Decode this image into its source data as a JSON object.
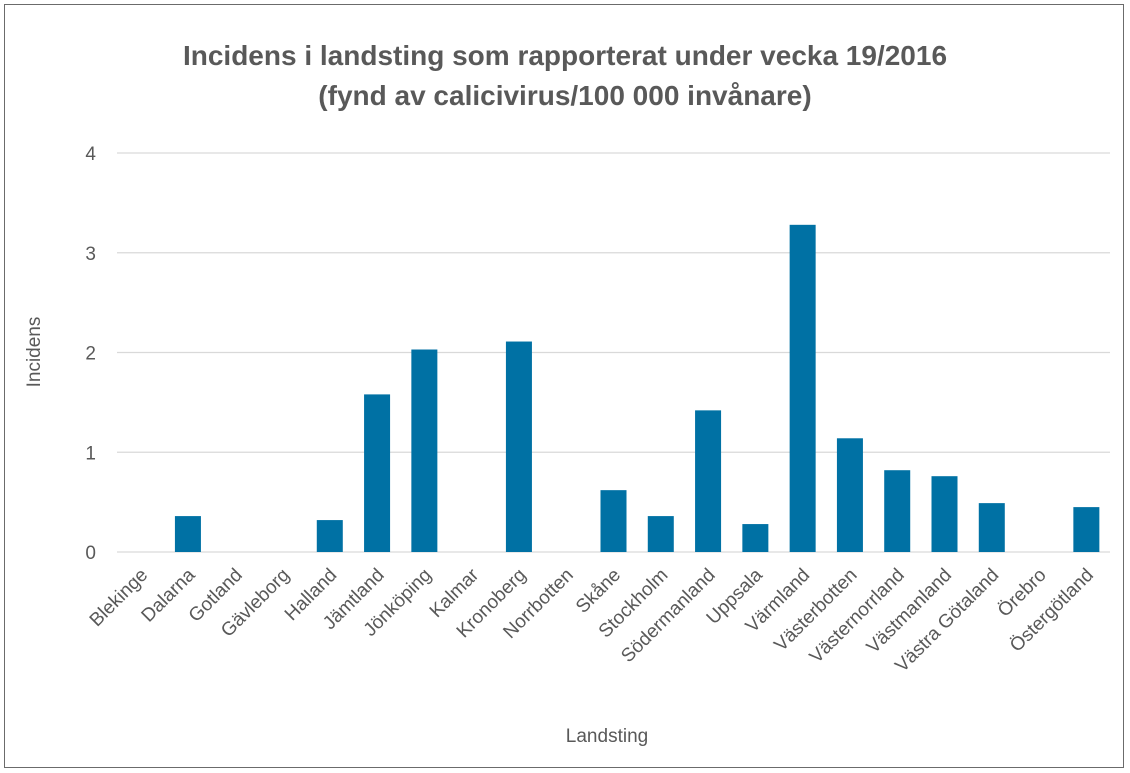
{
  "chart_data": {
    "type": "bar",
    "title_line1": "Incidens i landsting som rapporterat under vecka 19/2016",
    "title_line2": "(fynd av calicivirus/100 000 invånare)",
    "xlabel": "Landsting",
    "ylabel": "Incidens",
    "ylim": [
      0,
      4
    ],
    "yticks": [
      "0",
      "1",
      "2",
      "3",
      "4"
    ],
    "grid": true,
    "bar_color": "#0071a4",
    "categories": [
      "Blekinge",
      "Dalarna",
      "Gotland",
      "Gävleborg",
      "Halland",
      "Jämtland",
      "Jönköping",
      "Kalmar",
      "Kronoberg",
      "Norrbotten",
      "Skåne",
      "Stockholm",
      "Södermanland",
      "Uppsala",
      "Värmland",
      "Västerbotten",
      "Västernorrland",
      "Västmanland",
      "Västra Götaland",
      "Örebro",
      "Östergötland"
    ],
    "values": [
      0,
      0.36,
      0,
      0,
      0.32,
      1.58,
      2.03,
      0,
      2.11,
      0,
      0.62,
      0.36,
      1.42,
      0.28,
      3.28,
      1.14,
      0.82,
      0.76,
      0.49,
      0,
      0.45
    ]
  }
}
